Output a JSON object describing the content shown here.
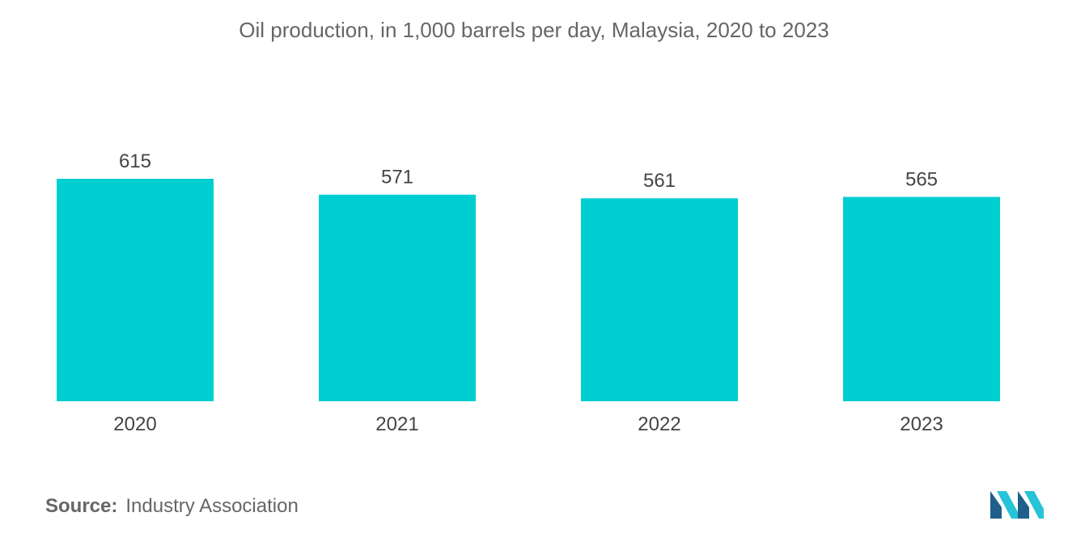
{
  "chart_data": {
    "type": "bar",
    "title": "Oil production, in 1,000 barrels per day, Malaysia, 2020 to 2023",
    "categories": [
      "2020",
      "2021",
      "2022",
      "2023"
    ],
    "values": [
      615,
      571,
      561,
      565
    ],
    "data_labels": [
      "615",
      "571",
      "561",
      "565"
    ],
    "bar_color": "#00CED1",
    "ylim": [
      0,
      615
    ],
    "grid": false,
    "legend": "none"
  },
  "source": {
    "label": "Source:",
    "text": "Industry Association"
  },
  "logo": {
    "icon": "mordor-logo-icon",
    "colors": [
      "#1F5F8B",
      "#27C3D8"
    ]
  }
}
